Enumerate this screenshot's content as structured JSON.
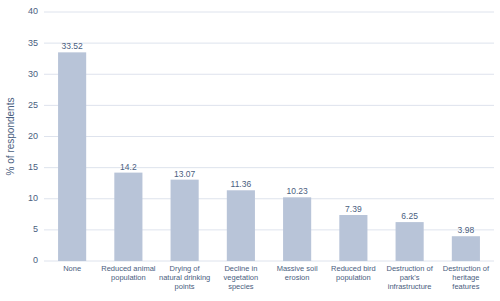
{
  "chart_data": {
    "type": "bar",
    "categories": [
      "None",
      "Reduced animal\npopulation",
      "Drying of\nnatural drinking\npoints",
      "Decline in\nvegetation\nspecies",
      "Massive soil\nerosion",
      "Reduced bird\npopulation",
      "Destruction of\npark's\ninfrastructure",
      "Destruction of\nheritage\nfeatures"
    ],
    "values": [
      33.52,
      14.2,
      13.07,
      11.36,
      10.23,
      7.39,
      6.25,
      3.98
    ],
    "color": "#b8c4d8",
    "ylabel": "% of respondents",
    "ylim": [
      0,
      40
    ],
    "yticks": [
      0,
      5,
      10,
      15,
      20,
      25,
      30,
      35,
      40
    ],
    "grid": true,
    "data_labels": true
  }
}
